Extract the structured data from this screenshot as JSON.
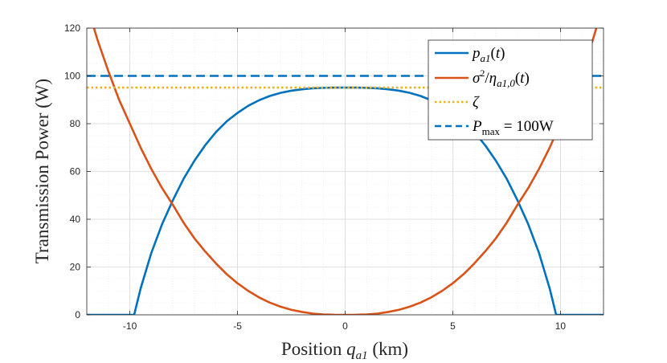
{
  "chart_data": {
    "type": "line",
    "xlabel": "Position q_a1 (km)",
    "xlabel_parts": {
      "prefix": "Position ",
      "var": "q",
      "sub": "a1",
      "suffix": " (km)"
    },
    "ylabel": "Transmission Power (W)",
    "xlim": [
      -12,
      12
    ],
    "ylim": [
      0,
      120
    ],
    "xticks": [
      -10,
      -5,
      0,
      5,
      10
    ],
    "xtick_labels": [
      "-10",
      "-5",
      "0",
      "5",
      "10"
    ],
    "yticks": [
      0,
      20,
      40,
      60,
      80,
      100,
      120
    ],
    "ytick_labels": [
      "0",
      "20",
      "40",
      "60",
      "80",
      "100",
      "120"
    ],
    "grid": true,
    "minor_grid": true,
    "legend_position": "top-right",
    "colors": {
      "p": "#0072BD",
      "ratio": "#D95319",
      "zeta": "#EDB120",
      "pmax": "#0072BD"
    },
    "legend": [
      {
        "label": "p_a1(t)",
        "key": "p"
      },
      {
        "label": "σ²/η_a1,0(t)",
        "key": "ratio"
      },
      {
        "label": "ζ",
        "key": "zeta"
      },
      {
        "label": "P_max = 100W",
        "key": "pmax"
      }
    ],
    "series": [
      {
        "name": "p_a1(t)",
        "style": "solid",
        "x": [
          -12,
          -9.8,
          -9.5,
          -9,
          -8.5,
          -8,
          -7.5,
          -7,
          -6.5,
          -6,
          -5.5,
          -5,
          -4.5,
          -4,
          -3.5,
          -3,
          -2.5,
          -2,
          -1.5,
          -1,
          -0.5,
          0,
          0.5,
          1,
          1.5,
          2,
          2.5,
          3,
          3.5,
          4,
          4.5,
          5,
          5.5,
          6,
          6.5,
          7,
          7.5,
          8,
          8.5,
          9,
          9.5,
          9.8,
          12
        ],
        "y": [
          0,
          0,
          11,
          26,
          38,
          48,
          57,
          64.5,
          71,
          76.5,
          81,
          84.5,
          87.5,
          89.8,
          91.6,
          92.9,
          93.8,
          94.4,
          94.8,
          95.0,
          95.1,
          95.1,
          95.1,
          95.0,
          94.8,
          94.4,
          93.8,
          92.9,
          91.6,
          89.8,
          87.5,
          84.5,
          81,
          76.5,
          71,
          64.5,
          57,
          48,
          38,
          26,
          11,
          0,
          0
        ]
      },
      {
        "name": "σ²/η_a1,0(t)",
        "style": "solid",
        "x": [
          -12,
          -11.5,
          -11,
          -10.5,
          -10,
          -9.5,
          -9,
          -8.5,
          -8,
          -7.5,
          -7,
          -6.5,
          -6,
          -5.5,
          -5,
          -4.5,
          -4,
          -3.5,
          -3,
          -2.5,
          -2,
          -1.5,
          -1,
          -0.5,
          0,
          0.5,
          1,
          1.5,
          2,
          2.5,
          3,
          3.5,
          4,
          4.5,
          5,
          5.5,
          6,
          6.5,
          7,
          7.5,
          8,
          8.5,
          9,
          9.5,
          10,
          10.5,
          11,
          11.5,
          12
        ],
        "y": [
          130,
          115,
          102,
          90,
          80,
          70,
          61,
          53,
          46,
          38.5,
          32,
          26.5,
          21.5,
          17,
          13.2,
          10,
          7.3,
          5.1,
          3.4,
          2.1,
          1.2,
          0.5,
          0.15,
          0.02,
          0,
          0.02,
          0.15,
          0.5,
          1.2,
          2.1,
          3.4,
          5.1,
          7.3,
          10,
          13.2,
          17,
          21.5,
          26.5,
          32,
          38.5,
          46,
          53,
          61,
          70,
          80,
          90,
          102,
          115,
          130
        ]
      },
      {
        "name": "ζ",
        "style": "dotted",
        "x": [
          -12,
          12
        ],
        "y": [
          95.1,
          95.1
        ]
      },
      {
        "name": "P_max = 100W",
        "style": "dashed",
        "x": [
          -12,
          12
        ],
        "y": [
          100,
          100
        ]
      }
    ]
  }
}
